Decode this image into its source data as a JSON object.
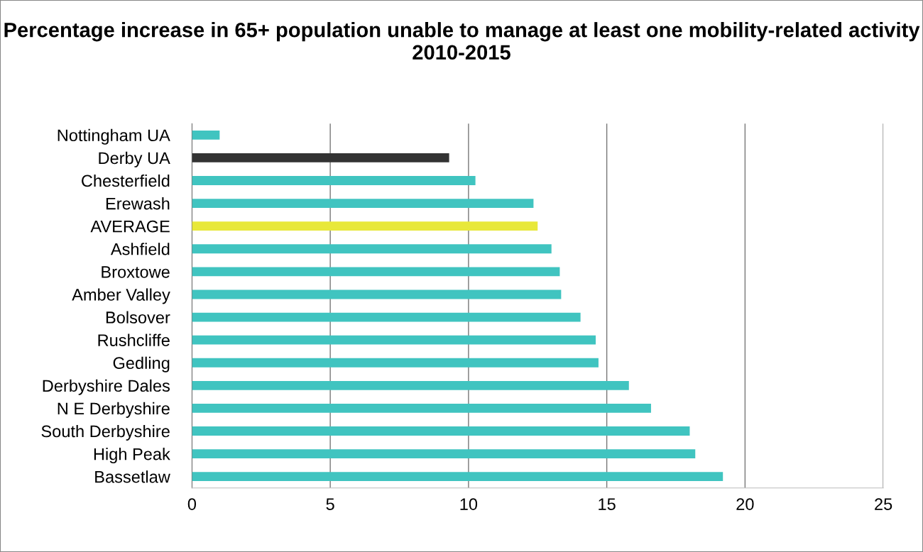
{
  "chart_data": {
    "type": "bar",
    "orientation": "horizontal",
    "title": "Percentage increase in 65+ population unable to manage at least one mobility-related activity 2010-2015",
    "categories": [
      "Nottingham UA",
      "Derby UA",
      "Chesterfield",
      "Erewash",
      "AVERAGE",
      "Ashfield",
      "Broxtowe",
      "Amber Valley",
      "Bolsover",
      "Rushcliffe",
      "Gedling",
      "Derbyshire Dales",
      "N E Derbyshire",
      "South Derbyshire",
      "High Peak",
      "Bassetlaw"
    ],
    "values": [
      1.0,
      9.3,
      10.25,
      12.35,
      12.5,
      13.0,
      13.3,
      13.35,
      14.05,
      14.6,
      14.7,
      15.8,
      16.6,
      18.0,
      18.2,
      19.2
    ],
    "colors": [
      "#40c4c0",
      "#333333",
      "#40c4c0",
      "#40c4c0",
      "#e8e83a",
      "#40c4c0",
      "#40c4c0",
      "#40c4c0",
      "#40c4c0",
      "#40c4c0",
      "#40c4c0",
      "#40c4c0",
      "#40c4c0",
      "#40c4c0",
      "#40c4c0",
      "#40c4c0"
    ],
    "xlim": [
      0,
      25
    ],
    "xticks": [
      0,
      5,
      10,
      15,
      20,
      25
    ],
    "grid": "x",
    "legend": false
  }
}
